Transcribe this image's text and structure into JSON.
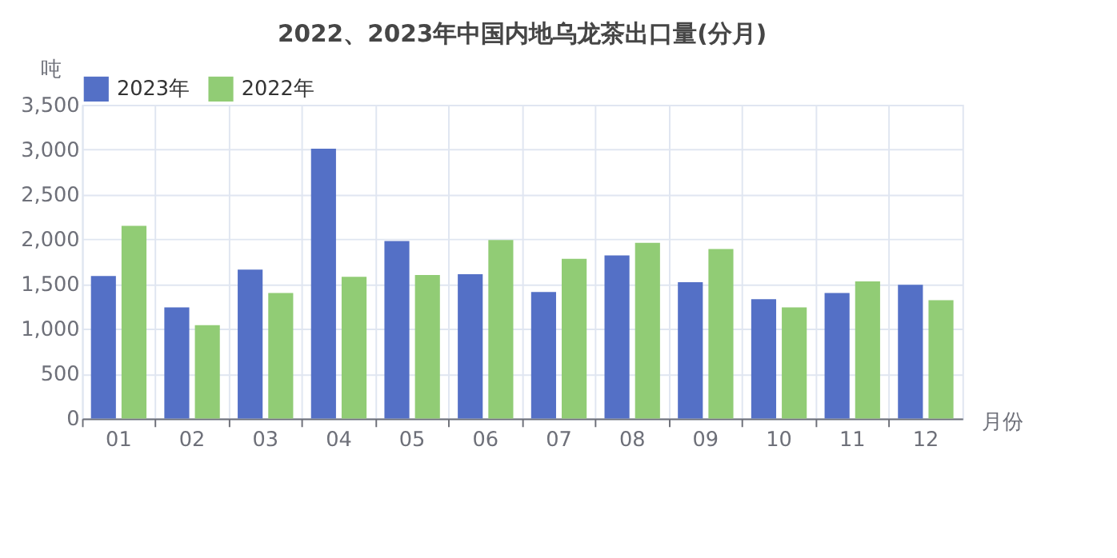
{
  "chart_data": {
    "type": "bar",
    "title": "2022、2023年中国内地乌龙茶出口量(分月)",
    "xlabel": "月份",
    "ylabel": "吨",
    "categories": [
      "01",
      "02",
      "03",
      "04",
      "05",
      "06",
      "07",
      "08",
      "09",
      "10",
      "11",
      "12"
    ],
    "series": [
      {
        "name": "2023年",
        "color": "#5470c6",
        "values": [
          1590,
          1240,
          1660,
          3010,
          1980,
          1610,
          1410,
          1820,
          1520,
          1330,
          1400,
          1490
        ]
      },
      {
        "name": "2022年",
        "color": "#91cc75",
        "values": [
          2150,
          1040,
          1400,
          1580,
          1600,
          1990,
          1780,
          1960,
          1890,
          1240,
          1530,
          1320
        ]
      }
    ],
    "ylim": [
      0,
      3500
    ],
    "yticks": [
      0,
      500,
      {
        "value": 1000,
        "label": "1,000"
      },
      {
        "value": 1500,
        "label": "1,500"
      },
      {
        "value": 2000,
        "label": "2,000"
      },
      {
        "value": 2500,
        "label": "2,500"
      },
      {
        "value": 3000,
        "label": "3,000"
      },
      {
        "value": 3500,
        "label": "3,500"
      }
    ],
    "grid": true,
    "legend": "top"
  }
}
